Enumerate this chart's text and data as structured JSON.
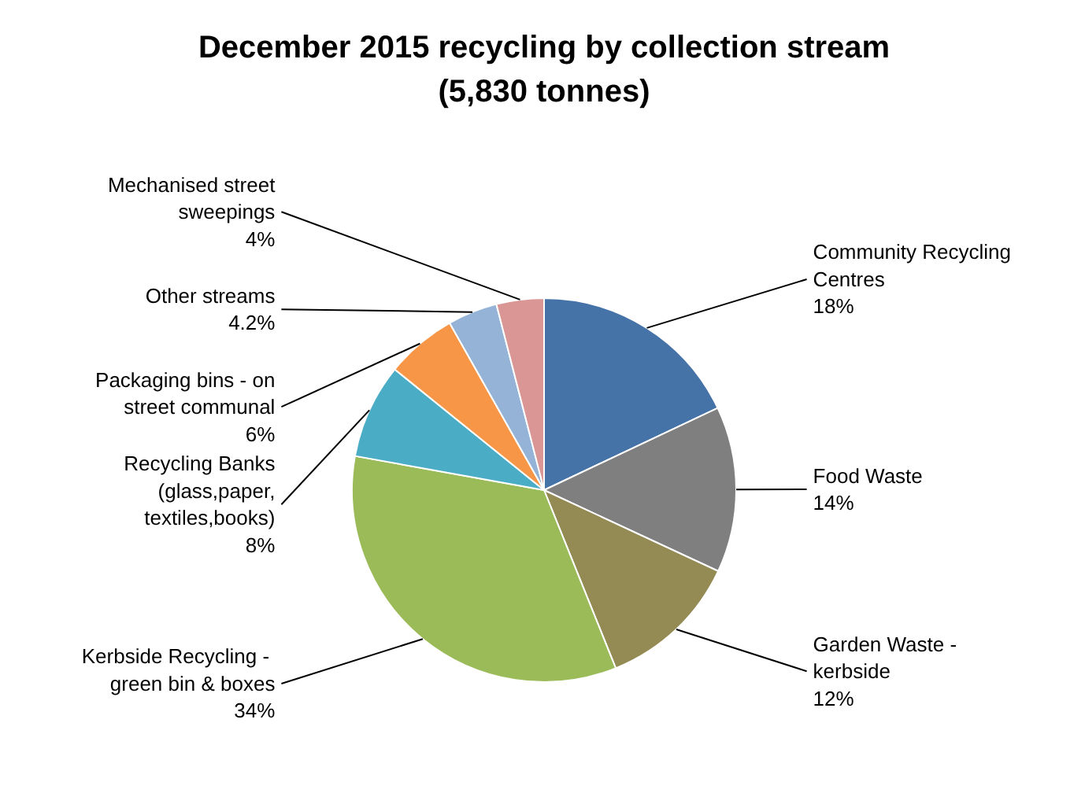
{
  "chart_data": {
    "type": "pie",
    "title": "December 2015 recycling by collection stream\n(5,830 tonnes)",
    "categories": [
      "Community Recycling Centres",
      "Food Waste",
      "Garden Waste - kerbside",
      "Kerbside  Recycling - green bin & boxes",
      "Recycling Banks (glass,paper, textiles,books)",
      "Packaging bins - on street communal",
      "Other streams",
      "Mechanised street sweepings"
    ],
    "values": [
      18,
      14,
      12,
      34,
      8,
      6,
      4.2,
      4
    ],
    "colors": [
      "#4572a7",
      "#7f7f7f",
      "#948a54",
      "#9bbb59",
      "#4bacc6",
      "#f79646",
      "#95b3d7",
      "#d99694"
    ],
    "value_labels": [
      "18%",
      "14%",
      "12%",
      "34%",
      "8%",
      "6%",
      "4.2%",
      "4%"
    ]
  }
}
